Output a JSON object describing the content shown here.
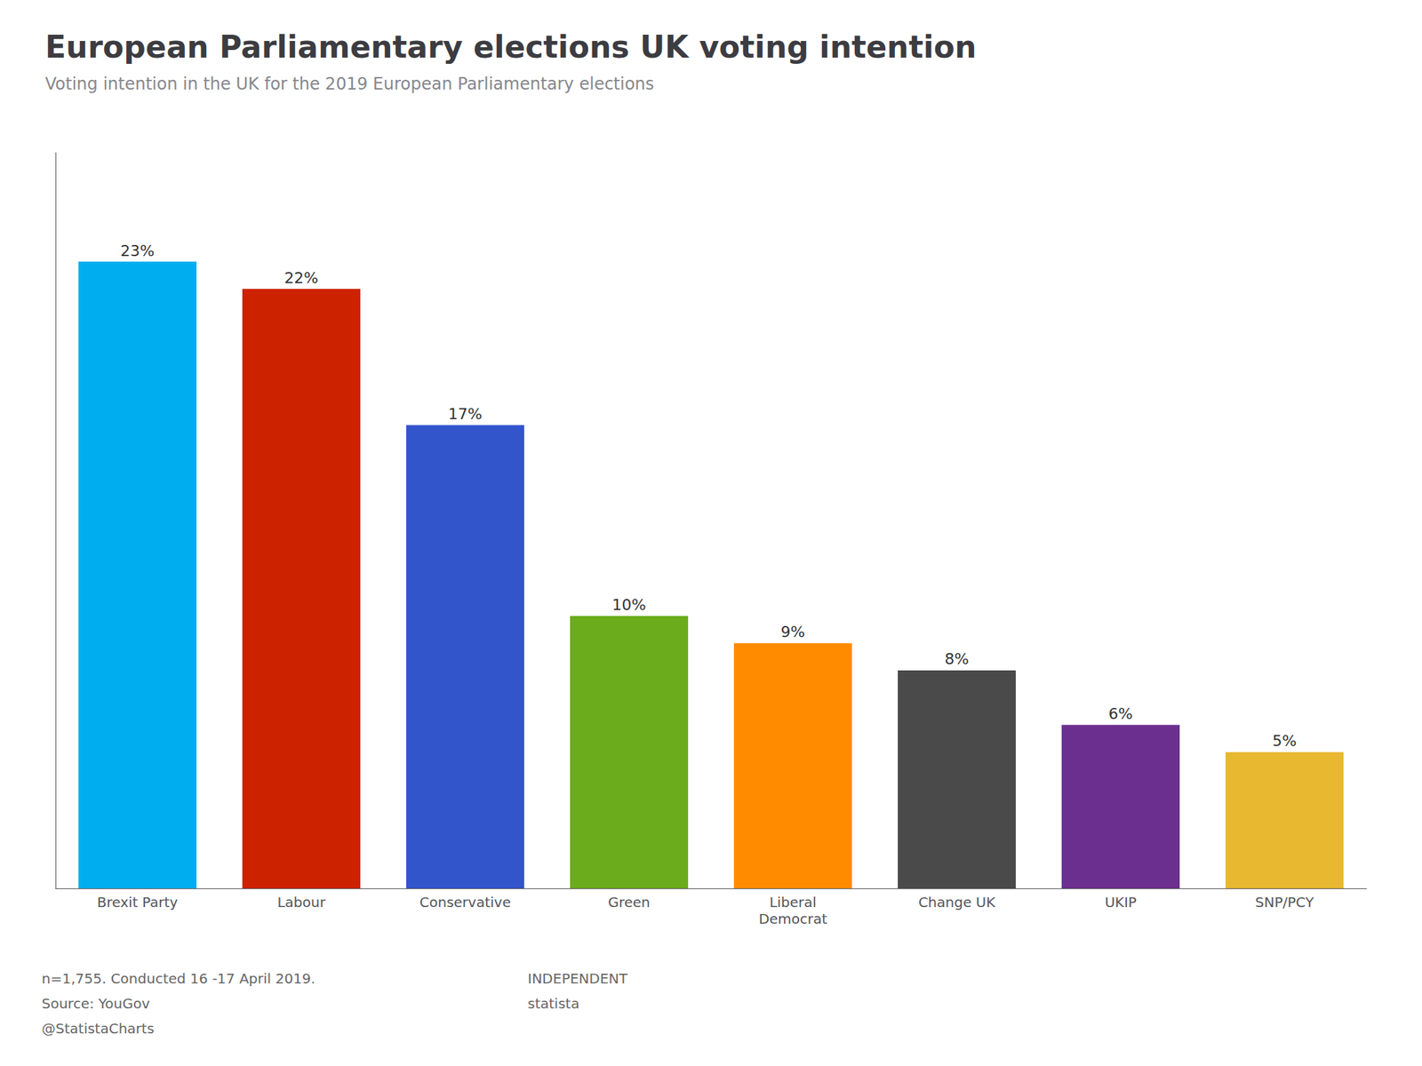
{
  "chart_data": {
    "type": "bar",
    "title": "European Parliamentary elections UK voting intention",
    "subtitle": "Voting intention in the UK for the 2019 European Parliamentary elections",
    "categories": [
      "Brexit Party",
      "Labour",
      "Conservative",
      "Green",
      "Liberal\nDemocrat",
      "Change UK",
      "UKIP",
      "SNP/PCY"
    ],
    "values": [
      23,
      22,
      17,
      10,
      9,
      8,
      6,
      5
    ],
    "value_labels": [
      "23%",
      "22%",
      "17%",
      "10%",
      "9%",
      "8%",
      "6%",
      "5%"
    ],
    "colors": [
      "#00AEEF",
      "#CC2200",
      "#3355CC",
      "#6AAC1B",
      "#FF8C00",
      "#4A4A4A",
      "#6B2F8F",
      "#E8B830"
    ],
    "ylim": [
      0,
      27
    ],
    "data_labels": true,
    "tick_labels": "x",
    "grid": false,
    "annotations": [
      "n=1,755. Conducted 16 -17 April 2019.",
      "Source: YouGov",
      "@StatistaCharts",
      "INDEPENDENT",
      "statista"
    ]
  }
}
